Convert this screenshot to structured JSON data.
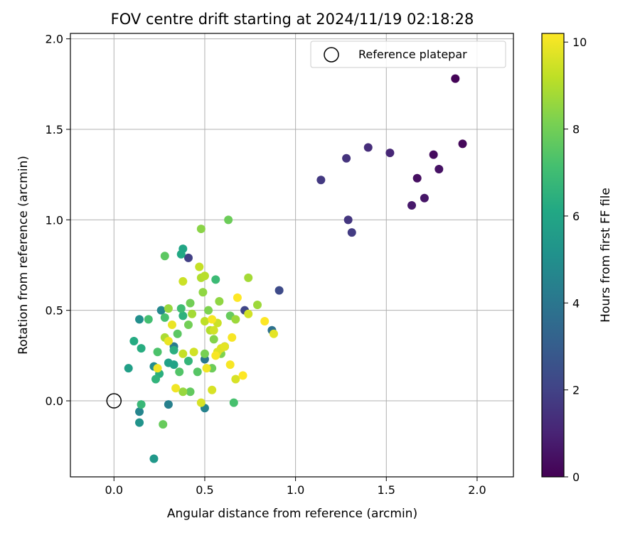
{
  "chart_data": {
    "type": "scatter",
    "title": "FOV centre drift starting at 2024/11/19 02:18:28",
    "xlabel": "Angular distance from reference (arcmin)",
    "ylabel": "Rotation from reference (arcmin)",
    "xlim": [
      -0.24,
      2.2
    ],
    "ylim": [
      -0.42,
      2.03
    ],
    "xticks": [
      0.0,
      0.5,
      1.0,
      1.5,
      2.0
    ],
    "xtick_labels": [
      "0.0",
      "0.5",
      "1.0",
      "1.5",
      "2.0"
    ],
    "yticks": [
      0.0,
      0.5,
      1.0,
      1.5,
      2.0
    ],
    "ytick_labels": [
      "0.0",
      "0.5",
      "1.0",
      "1.5",
      "2.0"
    ],
    "grid": true,
    "colormap": "viridis",
    "colorbar": {
      "label": "Hours from first FF file",
      "min": 0,
      "max": 10.2,
      "ticks": [
        0,
        2,
        4,
        6,
        8,
        10
      ],
      "tick_labels": [
        "0",
        "2",
        "4",
        "6",
        "8",
        "10"
      ]
    },
    "legend": {
      "position": "top-right",
      "entries": [
        {
          "label": "Reference platepar",
          "marker": "open-circle"
        }
      ]
    },
    "reference_point": {
      "x": 0.0,
      "y": 0.0
    },
    "points": [
      {
        "x": 1.88,
        "y": 1.78,
        "c": 0.1
      },
      {
        "x": 1.92,
        "y": 1.42,
        "c": 0.2
      },
      {
        "x": 1.76,
        "y": 1.36,
        "c": 0.3
      },
      {
        "x": 1.67,
        "y": 1.23,
        "c": 0.4
      },
      {
        "x": 1.79,
        "y": 1.28,
        "c": 0.5
      },
      {
        "x": 1.71,
        "y": 1.12,
        "c": 0.6
      },
      {
        "x": 1.64,
        "y": 1.08,
        "c": 0.7
      },
      {
        "x": 1.52,
        "y": 1.37,
        "c": 1.1
      },
      {
        "x": 1.4,
        "y": 1.4,
        "c": 1.3
      },
      {
        "x": 1.28,
        "y": 1.34,
        "c": 1.5
      },
      {
        "x": 1.14,
        "y": 1.22,
        "c": 1.7
      },
      {
        "x": 1.29,
        "y": 1.0,
        "c": 1.6
      },
      {
        "x": 1.31,
        "y": 0.93,
        "c": 1.8
      },
      {
        "x": 0.41,
        "y": 0.79,
        "c": 1.9
      },
      {
        "x": 0.91,
        "y": 0.61,
        "c": 2.3
      },
      {
        "x": 0.72,
        "y": 0.5,
        "c": 2.1
      },
      {
        "x": 0.61,
        "y": 0.3,
        "c": 3.2
      },
      {
        "x": 0.87,
        "y": 0.39,
        "c": 3.8
      },
      {
        "x": 0.5,
        "y": 0.23,
        "c": 4.0
      },
      {
        "x": 0.33,
        "y": 0.3,
        "c": 4.2
      },
      {
        "x": 0.3,
        "y": -0.02,
        "c": 4.4
      },
      {
        "x": 0.5,
        "y": -0.04,
        "c": 4.5
      },
      {
        "x": 0.14,
        "y": -0.06,
        "c": 4.6
      },
      {
        "x": 0.26,
        "y": 0.5,
        "c": 4.7
      },
      {
        "x": 0.22,
        "y": 0.19,
        "c": 4.9
      },
      {
        "x": 0.14,
        "y": 0.45,
        "c": 5.0
      },
      {
        "x": 0.14,
        "y": -0.12,
        "c": 5.2
      },
      {
        "x": 0.22,
        "y": -0.32,
        "c": 5.4
      },
      {
        "x": 0.08,
        "y": 0.18,
        "c": 5.7
      },
      {
        "x": 0.3,
        "y": 0.21,
        "c": 5.8
      },
      {
        "x": 0.33,
        "y": 0.2,
        "c": 5.9
      },
      {
        "x": 0.38,
        "y": 0.84,
        "c": 6.0
      },
      {
        "x": 0.37,
        "y": 0.81,
        "c": 6.1
      },
      {
        "x": 0.11,
        "y": 0.33,
        "c": 6.2
      },
      {
        "x": 0.15,
        "y": 0.29,
        "c": 6.3
      },
      {
        "x": 0.33,
        "y": 0.28,
        "c": 6.4
      },
      {
        "x": 0.25,
        "y": 0.15,
        "c": 6.4
      },
      {
        "x": 0.38,
        "y": 0.47,
        "c": 6.5
      },
      {
        "x": 0.23,
        "y": 0.12,
        "c": 6.6
      },
      {
        "x": 0.41,
        "y": 0.22,
        "c": 6.7
      },
      {
        "x": 0.15,
        "y": -0.02,
        "c": 6.8
      },
      {
        "x": 0.56,
        "y": 0.67,
        "c": 6.9
      },
      {
        "x": 0.37,
        "y": 0.51,
        "c": 7.0
      },
      {
        "x": 0.19,
        "y": 0.45,
        "c": 7.1
      },
      {
        "x": 0.28,
        "y": 0.46,
        "c": 7.2
      },
      {
        "x": 0.24,
        "y": 0.27,
        "c": 7.3
      },
      {
        "x": 0.36,
        "y": 0.16,
        "c": 7.4
      },
      {
        "x": 0.66,
        "y": -0.01,
        "c": 7.2
      },
      {
        "x": 0.28,
        "y": 0.8,
        "c": 7.6
      },
      {
        "x": 0.42,
        "y": 0.05,
        "c": 7.7
      },
      {
        "x": 0.27,
        "y": -0.13,
        "c": 7.8
      },
      {
        "x": 0.46,
        "y": 0.16,
        "c": 7.5
      },
      {
        "x": 0.35,
        "y": 0.37,
        "c": 7.6
      },
      {
        "x": 0.64,
        "y": 0.47,
        "c": 7.8
      },
      {
        "x": 0.54,
        "y": 0.18,
        "c": 7.9
      },
      {
        "x": 0.41,
        "y": 0.42,
        "c": 8.0
      },
      {
        "x": 0.42,
        "y": 0.54,
        "c": 8.0
      },
      {
        "x": 0.5,
        "y": 0.26,
        "c": 8.1
      },
      {
        "x": 0.52,
        "y": 0.5,
        "c": 8.2
      },
      {
        "x": 0.63,
        "y": 1.0,
        "c": 7.9
      },
      {
        "x": 0.48,
        "y": 0.95,
        "c": 8.4
      },
      {
        "x": 0.55,
        "y": 0.34,
        "c": 8.3
      },
      {
        "x": 0.58,
        "y": 0.55,
        "c": 8.5
      },
      {
        "x": 0.59,
        "y": 0.26,
        "c": 8.2
      },
      {
        "x": 0.38,
        "y": 0.05,
        "c": 8.6
      },
      {
        "x": 0.67,
        "y": 0.45,
        "c": 8.7
      },
      {
        "x": 0.74,
        "y": 0.68,
        "c": 8.8
      },
      {
        "x": 0.49,
        "y": 0.6,
        "c": 8.5
      },
      {
        "x": 0.79,
        "y": 0.53,
        "c": 8.7
      },
      {
        "x": 0.3,
        "y": 0.51,
        "c": 8.6
      },
      {
        "x": 0.43,
        "y": 0.48,
        "c": 8.8
      },
      {
        "x": 0.28,
        "y": 0.35,
        "c": 8.9
      },
      {
        "x": 0.48,
        "y": 0.68,
        "c": 9.0
      },
      {
        "x": 0.5,
        "y": 0.69,
        "c": 9.1
      },
      {
        "x": 0.47,
        "y": 0.74,
        "c": 9.3
      },
      {
        "x": 0.38,
        "y": 0.66,
        "c": 9.4
      },
      {
        "x": 0.5,
        "y": 0.44,
        "c": 9.2
      },
      {
        "x": 0.53,
        "y": 0.39,
        "c": 9.0
      },
      {
        "x": 0.57,
        "y": 0.43,
        "c": 9.4
      },
      {
        "x": 0.38,
        "y": 0.26,
        "c": 9.3
      },
      {
        "x": 0.44,
        "y": 0.27,
        "c": 9.5
      },
      {
        "x": 0.55,
        "y": 0.39,
        "c": 9.5
      },
      {
        "x": 0.48,
        "y": -0.01,
        "c": 9.6
      },
      {
        "x": 0.54,
        "y": 0.06,
        "c": 9.6
      },
      {
        "x": 0.59,
        "y": 0.29,
        "c": 9.7
      },
      {
        "x": 0.57,
        "y": 0.27,
        "c": 9.7
      },
      {
        "x": 0.74,
        "y": 0.48,
        "c": 9.5
      },
      {
        "x": 0.67,
        "y": 0.12,
        "c": 9.6
      },
      {
        "x": 0.88,
        "y": 0.37,
        "c": 9.8
      },
      {
        "x": 0.61,
        "y": 0.3,
        "c": 9.8
      },
      {
        "x": 0.32,
        "y": 0.42,
        "c": 9.9
      },
      {
        "x": 0.3,
        "y": 0.33,
        "c": 9.9
      },
      {
        "x": 0.34,
        "y": 0.07,
        "c": 10.0
      },
      {
        "x": 0.24,
        "y": 0.18,
        "c": 10.0
      },
      {
        "x": 0.51,
        "y": 0.18,
        "c": 10.0
      },
      {
        "x": 0.54,
        "y": 0.45,
        "c": 10.1
      },
      {
        "x": 0.56,
        "y": 0.25,
        "c": 10.1
      },
      {
        "x": 0.64,
        "y": 0.2,
        "c": 10.1
      },
      {
        "x": 0.65,
        "y": 0.35,
        "c": 10.1
      },
      {
        "x": 0.68,
        "y": 0.57,
        "c": 10.2
      },
      {
        "x": 0.71,
        "y": 0.14,
        "c": 10.2
      },
      {
        "x": 0.83,
        "y": 0.44,
        "c": 10.2
      }
    ]
  }
}
